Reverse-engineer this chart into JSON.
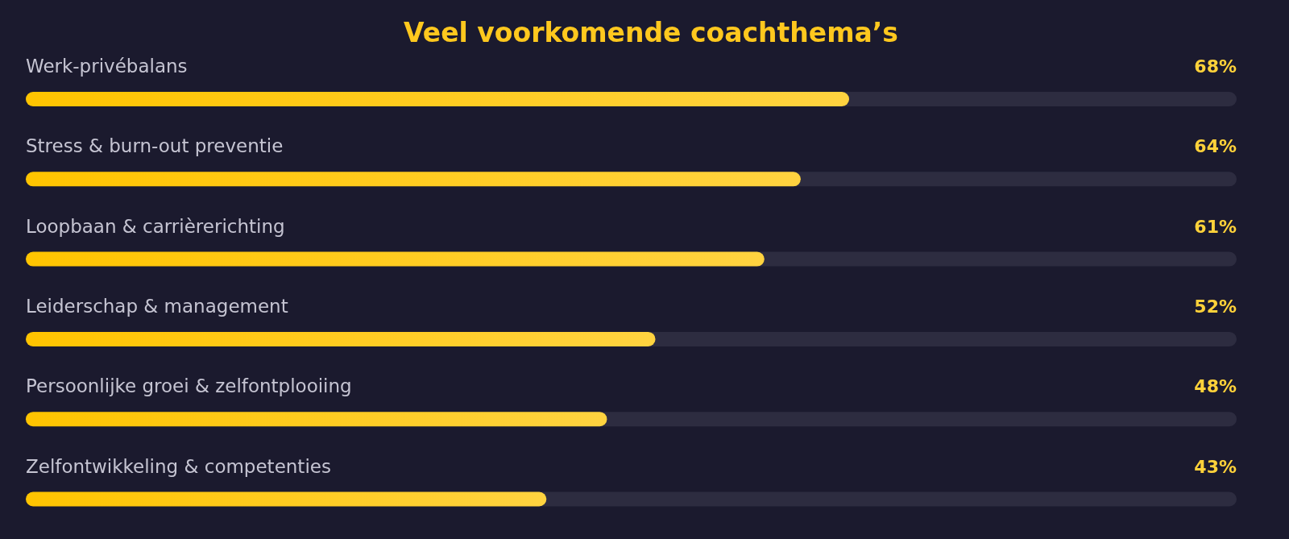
{
  "chart_data": {
    "type": "bar",
    "orientation": "horizontal",
    "title": "Veel voorkomende coachthema’s",
    "categories": [
      "Werk-privébalans",
      "Stress & burn-out preventie",
      "Loopbaan & carrièrerichting",
      "Leiderschap & management",
      "Persoonlijke groei & zelfontplooiing",
      "Zelfontwikkeling & competenties"
    ],
    "values": [
      68,
      64,
      61,
      52,
      48,
      43
    ],
    "value_labels": [
      "68%",
      "64%",
      "61%",
      "52%",
      "48%",
      "43%"
    ],
    "color": "#ffc400",
    "xlim": [
      0,
      100
    ]
  }
}
